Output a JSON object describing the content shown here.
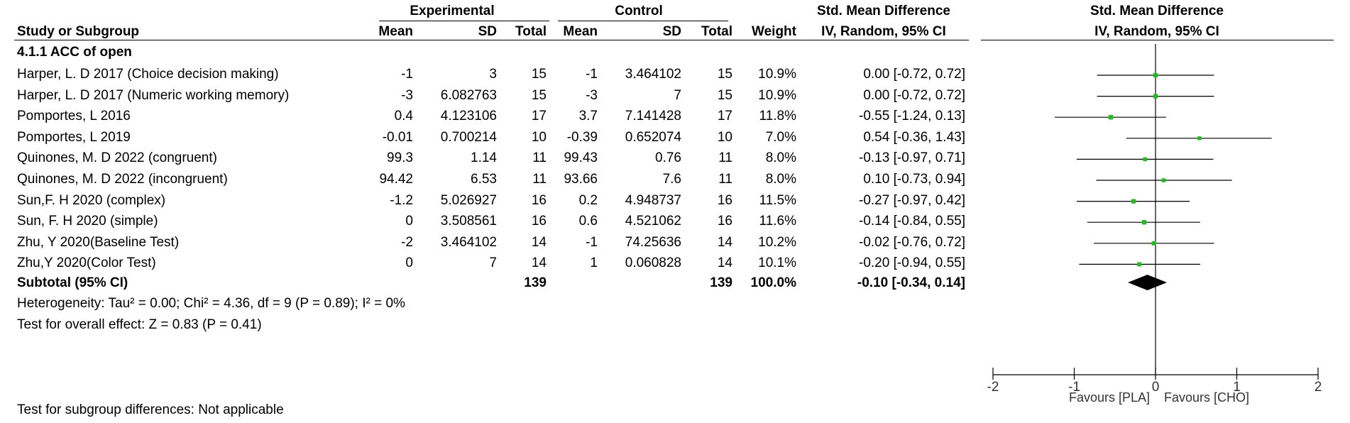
{
  "header": {
    "group_experimental": "Experimental",
    "group_control": "Control",
    "smd_title": "Std. Mean Difference",
    "plot_title": "Std. Mean Difference",
    "col_study": "Study or Subgroup",
    "col_mean_e": "Mean",
    "col_sd_e": "SD",
    "col_total_e": "Total",
    "col_mean_c": "Mean",
    "col_sd_c": "SD",
    "col_total_c": "Total",
    "col_weight": "Weight",
    "col_ci": "IV, Random, 95% CI",
    "plot_ci": "IV, Random, 95% CI"
  },
  "subgroup_title": "4.1.1 ACC of open",
  "rows": [
    {
      "study": "Harper, L. D 2017 (Choice decision making)",
      "mean_e": "-1",
      "sd_e": "3",
      "total_e": "15",
      "mean_c": "-1",
      "sd_c": "3.464102",
      "total_c": "15",
      "weight": "10.9%",
      "ci": "0.00 [-0.72, 0.72]"
    },
    {
      "study": "Harper, L. D 2017 (Numeric working memory)",
      "mean_e": "-3",
      "sd_e": "6.082763",
      "total_e": "15",
      "mean_c": "-3",
      "sd_c": "7",
      "total_c": "15",
      "weight": "10.9%",
      "ci": "0.00 [-0.72, 0.72]"
    },
    {
      "study": "Pomportes, L 2016",
      "mean_e": "0.4",
      "sd_e": "4.123106",
      "total_e": "17",
      "mean_c": "3.7",
      "sd_c": "7.141428",
      "total_c": "17",
      "weight": "11.8%",
      "ci": "-0.55 [-1.24, 0.13]"
    },
    {
      "study": "Pomportes, L 2019",
      "mean_e": "-0.01",
      "sd_e": "0.700214",
      "total_e": "10",
      "mean_c": "-0.39",
      "sd_c": "0.652074",
      "total_c": "10",
      "weight": "7.0%",
      "ci": "0.54 [-0.36, 1.43]"
    },
    {
      "study": "Quinones, M. D 2022 (congruent)",
      "mean_e": "99.3",
      "sd_e": "1.14",
      "total_e": "11",
      "mean_c": "99.43",
      "sd_c": "0.76",
      "total_c": "11",
      "weight": "8.0%",
      "ci": "-0.13 [-0.97, 0.71]"
    },
    {
      "study": "Quinones, M. D 2022 (incongruent)",
      "mean_e": "94.42",
      "sd_e": "6.53",
      "total_e": "11",
      "mean_c": "93.66",
      "sd_c": "7.6",
      "total_c": "11",
      "weight": "8.0%",
      "ci": "0.10 [-0.73, 0.94]"
    },
    {
      "study": "Sun,F. H 2020 (complex)",
      "mean_e": "-1.2",
      "sd_e": "5.026927",
      "total_e": "16",
      "mean_c": "0.2",
      "sd_c": "4.948737",
      "total_c": "16",
      "weight": "11.5%",
      "ci": "-0.27 [-0.97, 0.42]"
    },
    {
      "study": "Sun, F. H 2020 (simple)",
      "mean_e": "0",
      "sd_e": "3.508561",
      "total_e": "16",
      "mean_c": "0.6",
      "sd_c": "4.521062",
      "total_c": "16",
      "weight": "11.6%",
      "ci": "-0.14 [-0.84, 0.55]"
    },
    {
      "study": "Zhu, Y 2020(Baseline Test)",
      "mean_e": "-2",
      "sd_e": "3.464102",
      "total_e": "14",
      "mean_c": "-1",
      "sd_c": "74.25636",
      "total_c": "14",
      "weight": "10.2%",
      "ci": "-0.02 [-0.76, 0.72]"
    },
    {
      "study": "Zhu,Y 2020(Color Test)",
      "mean_e": "0",
      "sd_e": "7",
      "total_e": "14",
      "mean_c": "1",
      "sd_c": "0.060828",
      "total_c": "14",
      "weight": "10.1%",
      "ci": "-0.20 [-0.94, 0.55]"
    }
  ],
  "subtotal": {
    "label": "Subtotal (95% CI)",
    "total_e": "139",
    "total_c": "139",
    "weight": "100.0%",
    "ci": "-0.10 [-0.34, 0.14]"
  },
  "heterogeneity": "Heterogeneity: Tau² = 0.00; Chi² = 4.36, df = 9 (P = 0.89); I² = 0%",
  "overall_effect": "Test for overall effect: Z = 0.83 (P = 0.41)",
  "subgroup_diff": "Test for subgroup differences: Not applicable",
  "favours_left": "Favours [PLA]",
  "favours_right": "Favours [CHO]",
  "colors": {
    "marker": "#22bb22",
    "diamond": "#000000",
    "line": "#000000"
  },
  "chart_data": {
    "type": "scatter",
    "subtype": "forest-plot",
    "xlim": [
      -2,
      2
    ],
    "ticks": [
      -2,
      -1,
      0,
      1,
      2
    ],
    "tick_labels": [
      "-2",
      "-1",
      "0",
      "1",
      "2"
    ],
    "studies": [
      {
        "est": 0.0,
        "lo": -0.72,
        "hi": 0.72,
        "weight": 10.9
      },
      {
        "est": 0.0,
        "lo": -0.72,
        "hi": 0.72,
        "weight": 10.9
      },
      {
        "est": -0.55,
        "lo": -1.24,
        "hi": 0.13,
        "weight": 11.8
      },
      {
        "est": 0.54,
        "lo": -0.36,
        "hi": 1.43,
        "weight": 7.0
      },
      {
        "est": -0.13,
        "lo": -0.97,
        "hi": 0.71,
        "weight": 8.0
      },
      {
        "est": 0.1,
        "lo": -0.73,
        "hi": 0.94,
        "weight": 8.0
      },
      {
        "est": -0.27,
        "lo": -0.97,
        "hi": 0.42,
        "weight": 11.5
      },
      {
        "est": -0.14,
        "lo": -0.84,
        "hi": 0.55,
        "weight": 11.6
      },
      {
        "est": -0.02,
        "lo": -0.76,
        "hi": 0.72,
        "weight": 10.2
      },
      {
        "est": -0.2,
        "lo": -0.94,
        "hi": 0.55,
        "weight": 10.1
      }
    ],
    "pooled": {
      "est": -0.1,
      "lo": -0.34,
      "hi": 0.14
    }
  }
}
